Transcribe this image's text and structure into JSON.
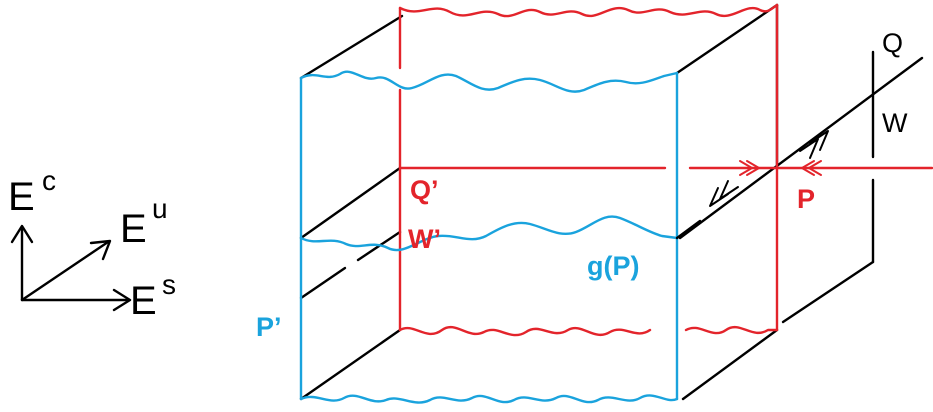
{
  "colors": {
    "black": "#000000",
    "red": "#e3242b",
    "blue": "#1aa3dd"
  },
  "axes": {
    "center": {
      "base": "E",
      "sup": "c"
    },
    "unstable": {
      "base": "E",
      "sup": "u"
    },
    "stable": {
      "base": "E",
      "sup": "s"
    }
  },
  "labels": {
    "Q": "Q",
    "W": "W",
    "P": "P",
    "Q_prime": "Q’",
    "W_prime": "W’",
    "g_of_P": "g(P)",
    "P_prime": "P’"
  }
}
